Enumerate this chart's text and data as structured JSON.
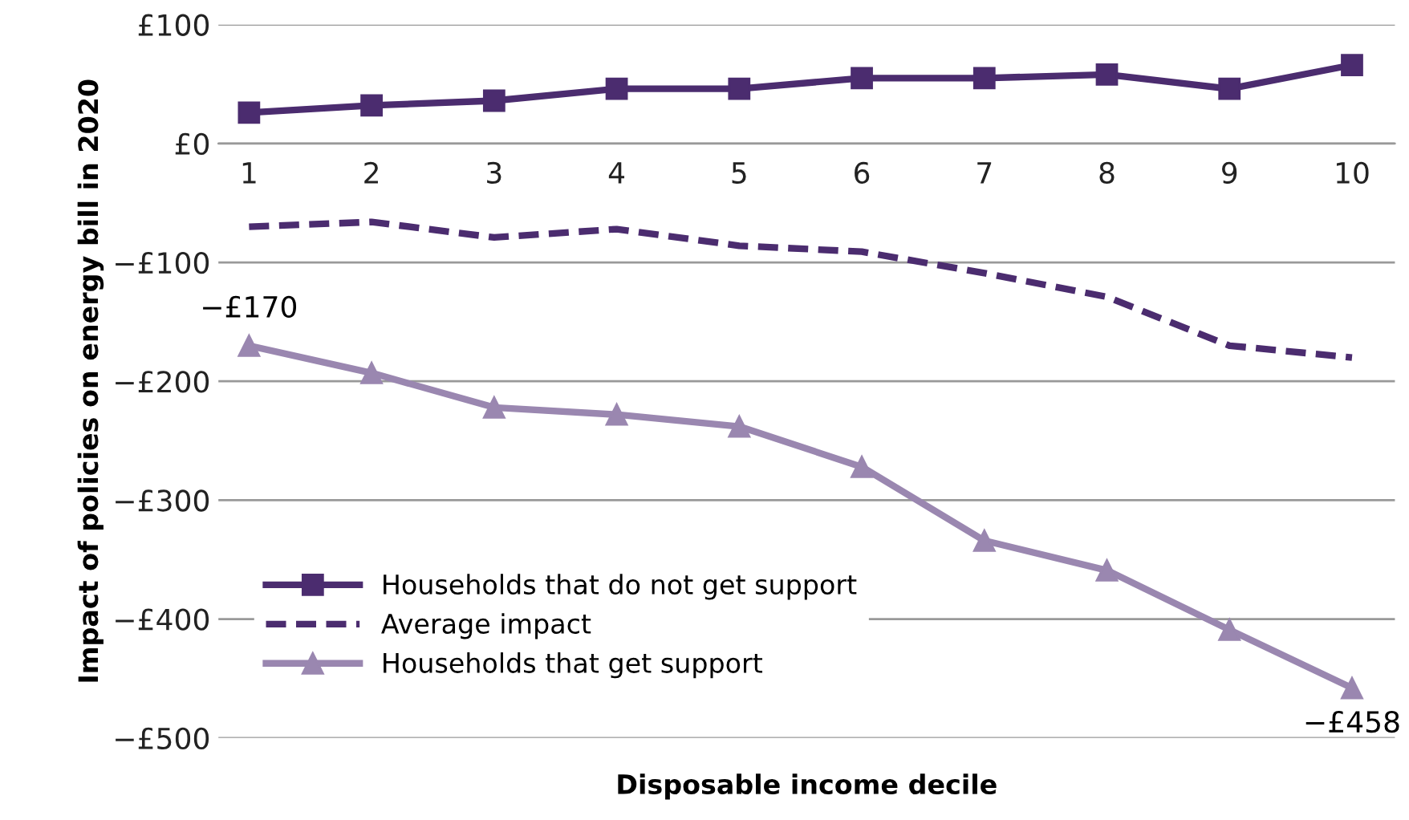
{
  "chart_data": {
    "type": "line",
    "xlabel": "Disposable income decile",
    "ylabel": "Impact of policies on energy bill in 2020",
    "categories": [
      "1",
      "2",
      "3",
      "4",
      "5",
      "6",
      "7",
      "8",
      "9",
      "10"
    ],
    "series": [
      {
        "name": "Households that do not get support",
        "color": "#4b2c6f",
        "marker": "square",
        "line_style": "solid",
        "values": [
          26,
          32,
          36,
          46,
          46,
          55,
          55,
          58,
          46,
          66
        ]
      },
      {
        "name": "Average impact",
        "color": "#4b2c6f",
        "marker": "none",
        "line_style": "dashed",
        "values": [
          -70,
          -66,
          -79,
          -72,
          -86,
          -91,
          -109,
          -129,
          -170,
          -180
        ]
      },
      {
        "name": "Households that get support",
        "color": "#9a87b0",
        "marker": "triangle",
        "line_style": "solid",
        "values": [
          -170,
          -193,
          -222,
          -228,
          -238,
          -272,
          -334,
          -359,
          -409,
          -458
        ]
      }
    ],
    "ylim": [
      -500,
      100
    ],
    "yticks": [
      {
        "value": 100,
        "label": "£100"
      },
      {
        "value": 0,
        "label": "£0"
      },
      {
        "value": -100,
        "label": "−£100"
      },
      {
        "value": -200,
        "label": "−£200"
      },
      {
        "value": -300,
        "label": "−£300"
      },
      {
        "value": -400,
        "label": "−£400"
      },
      {
        "value": -500,
        "label": "−£500"
      }
    ],
    "grid": "y",
    "legend": "bottom left",
    "annotations": [
      {
        "text": "−£170",
        "x": "1",
        "y": -170
      },
      {
        "text": "−£458",
        "x": "10",
        "y": -458
      }
    ]
  }
}
